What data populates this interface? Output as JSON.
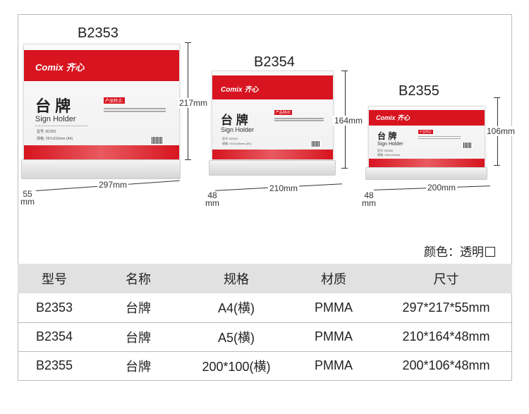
{
  "products": [
    {
      "model": "B2353",
      "height": "217mm",
      "width": "297mm",
      "depth": "55",
      "depth_unit": "mm",
      "card": {
        "brand": "Comix 齐心",
        "title": "台 牌",
        "subtitle": "Sign Holder",
        "features": "产品特点:",
        "model_line": "型号: B2353",
        "spec_line": "规格: 297x210mm (A4)"
      }
    },
    {
      "model": "B2354",
      "height": "164mm",
      "width": "210mm",
      "depth": "48",
      "depth_unit": "mm",
      "card": {
        "brand": "Comix 齐心",
        "title": "台 牌",
        "subtitle": "Sign Holder",
        "features": "产品特点:",
        "model_line": "型号: B2354",
        "spec_line": "规格: 210x148mm (A5)"
      }
    },
    {
      "model": "B2355",
      "height": "106mm",
      "width": "200mm",
      "depth": "48",
      "depth_unit": "mm",
      "card": {
        "brand": "Comix 齐心",
        "title": "台 牌",
        "subtitle": "Sign Holder",
        "features": "产品特点:",
        "model_line": "型号: B2355",
        "spec_line": "规格: 200x100mm"
      }
    }
  ],
  "color_note": {
    "label": "颜色：透明"
  },
  "table": {
    "headers": [
      "型号",
      "名称",
      "规格",
      "材质",
      "尺寸"
    ],
    "rows": [
      [
        "B2353",
        "台牌",
        "A4(横)",
        "PMMA",
        "297*217*55mm"
      ],
      [
        "B2354",
        "台牌",
        "A5(横)",
        "PMMA",
        "210*164*48mm"
      ],
      [
        "B2355",
        "台牌",
        "200*100(横)",
        "PMMA",
        "200*106*48mm"
      ]
    ]
  },
  "colors": {
    "brand_red": "#d7141f",
    "header_bg": "#e1e1e1"
  }
}
